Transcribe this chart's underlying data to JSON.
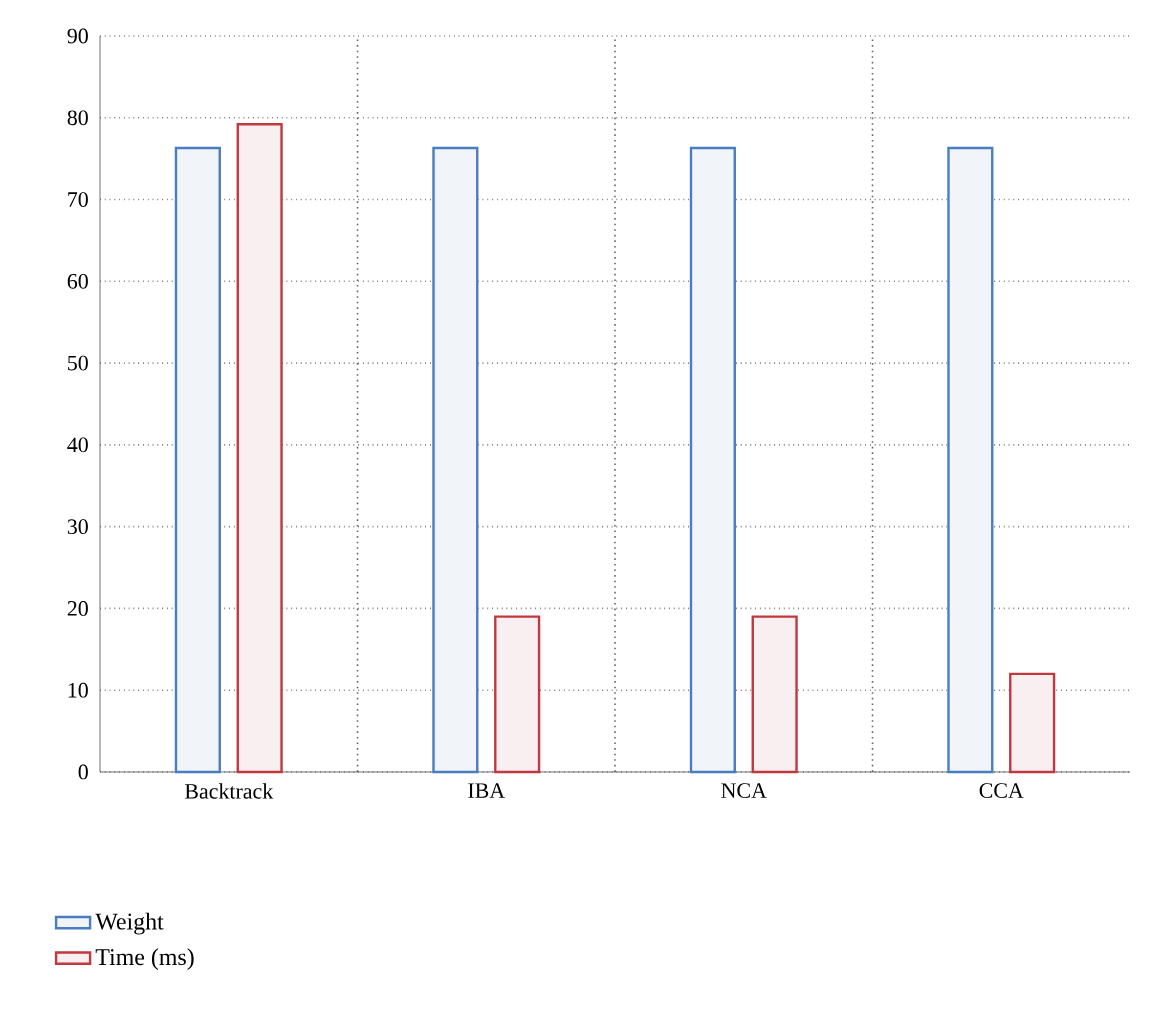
{
  "chart_data": {
    "type": "bar",
    "categories": [
      "Backtrack",
      "IBA",
      "NCA",
      "CCA"
    ],
    "series": [
      {
        "name": "Weight",
        "color": "#4a7cc0",
        "values": [
          76.3,
          76.3,
          76.3,
          76.3
        ]
      },
      {
        "name": "Time (ms)",
        "color": "#c0393f",
        "values": [
          79.2,
          19.0,
          19.0,
          12.0
        ]
      }
    ],
    "ylim": [
      0,
      90
    ],
    "yticks": [
      0,
      10,
      20,
      30,
      40,
      50,
      60,
      70,
      80,
      90
    ],
    "grid": true,
    "legend": "bottom left"
  }
}
